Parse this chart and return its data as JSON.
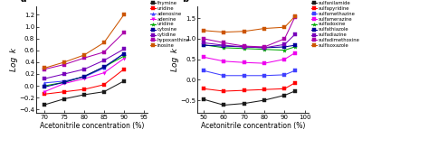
{
  "panel_a": {
    "x": [
      70,
      75,
      80,
      85,
      90
    ],
    "xlabel": "Acetonitrile concentration (%)",
    "ylabel": "Log  k",
    "title": "a",
    "xlim": [
      68,
      96
    ],
    "ylim": [
      -0.45,
      1.35
    ],
    "xticks": [
      70,
      75,
      80,
      85,
      90,
      95
    ],
    "yticks": [
      -0.4,
      -0.2,
      0.0,
      0.2,
      0.4,
      0.6,
      0.8,
      1.0,
      1.2
    ],
    "series": [
      {
        "label": "thymine",
        "color": "#1a1a1a",
        "marker": "s",
        "y": [
          -0.32,
          -0.22,
          -0.15,
          -0.1,
          0.08
        ]
      },
      {
        "label": "uridine",
        "color": "#ff0000",
        "marker": "s",
        "y": [
          -0.14,
          -0.1,
          -0.06,
          0.02,
          0.28
        ]
      },
      {
        "label": "adenosine",
        "color": "#4040ff",
        "marker": "^",
        "y": [
          0.05,
          0.08,
          0.15,
          0.3,
          0.55
        ]
      },
      {
        "label": "adenine",
        "color": "#ee00ee",
        "marker": "v",
        "y": [
          -0.1,
          0.04,
          0.12,
          0.22,
          0.46
        ]
      },
      {
        "label": "uridine",
        "color": "#00aa00",
        "marker": "*",
        "y": [
          0.0,
          0.06,
          0.16,
          0.32,
          0.5
        ]
      },
      {
        "label": "cytosine",
        "color": "#000099",
        "marker": "s",
        "y": [
          -0.02,
          0.06,
          0.16,
          0.32,
          0.54
        ]
      },
      {
        "label": "cytidine",
        "color": "#7700bb",
        "marker": "s",
        "y": [
          0.12,
          0.2,
          0.28,
          0.43,
          0.62
        ]
      },
      {
        "label": "hypoxanthine",
        "color": "#aa00aa",
        "marker": "s",
        "y": [
          0.28,
          0.36,
          0.47,
          0.57,
          0.9
        ]
      },
      {
        "label": "inosine",
        "color": "#cc5500",
        "marker": "s",
        "y": [
          0.3,
          0.4,
          0.52,
          0.73,
          1.2
        ]
      }
    ]
  },
  "panel_b": {
    "x": [
      50,
      60,
      70,
      80,
      90,
      95
    ],
    "xlabel": "Acetonitrile concentration (%)",
    "ylabel": "Log  k",
    "title": "b",
    "xlim": [
      47,
      102
    ],
    "ylim": [
      -0.8,
      1.8
    ],
    "xticks": [
      50,
      60,
      70,
      80,
      90,
      100
    ],
    "yticks": [
      -0.5,
      0.0,
      0.5,
      1.0,
      1.5
    ],
    "series": [
      {
        "label": "sulfanilamide",
        "color": "#1a1a1a",
        "marker": "s",
        "y": [
          -0.48,
          -0.62,
          -0.58,
          -0.5,
          -0.38,
          -0.28
        ]
      },
      {
        "label": "sulfapyridine",
        "color": "#ff0000",
        "marker": "s",
        "y": [
          -0.22,
          -0.28,
          -0.26,
          -0.24,
          -0.22,
          -0.08
        ]
      },
      {
        "label": "sulfamethazine",
        "color": "#4040ff",
        "marker": "s",
        "y": [
          0.22,
          0.1,
          0.1,
          0.1,
          0.12,
          0.22
        ]
      },
      {
        "label": "sulfamerazine",
        "color": "#ee00ee",
        "marker": "s",
        "y": [
          0.55,
          0.45,
          0.42,
          0.4,
          0.5,
          0.65
        ]
      },
      {
        "label": "sulfadoxine",
        "color": "#00aa00",
        "marker": "*",
        "y": [
          0.85,
          0.78,
          0.76,
          0.74,
          0.72,
          0.8
        ]
      },
      {
        "label": "sulfathiazole",
        "color": "#000099",
        "marker": "s",
        "y": [
          0.84,
          0.82,
          0.8,
          0.78,
          0.8,
          0.84
        ]
      },
      {
        "label": "sulfadiazine",
        "color": "#7700bb",
        "marker": "s",
        "y": [
          0.9,
          0.84,
          0.8,
          0.78,
          0.86,
          1.1
        ]
      },
      {
        "label": "sulfadimethoxine",
        "color": "#aa00aa",
        "marker": "s",
        "y": [
          1.0,
          0.9,
          0.82,
          0.8,
          1.0,
          1.52
        ]
      },
      {
        "label": "sulfisoxazole",
        "color": "#cc5500",
        "marker": "s",
        "y": [
          1.2,
          1.16,
          1.18,
          1.25,
          1.28,
          1.54
        ]
      }
    ]
  }
}
